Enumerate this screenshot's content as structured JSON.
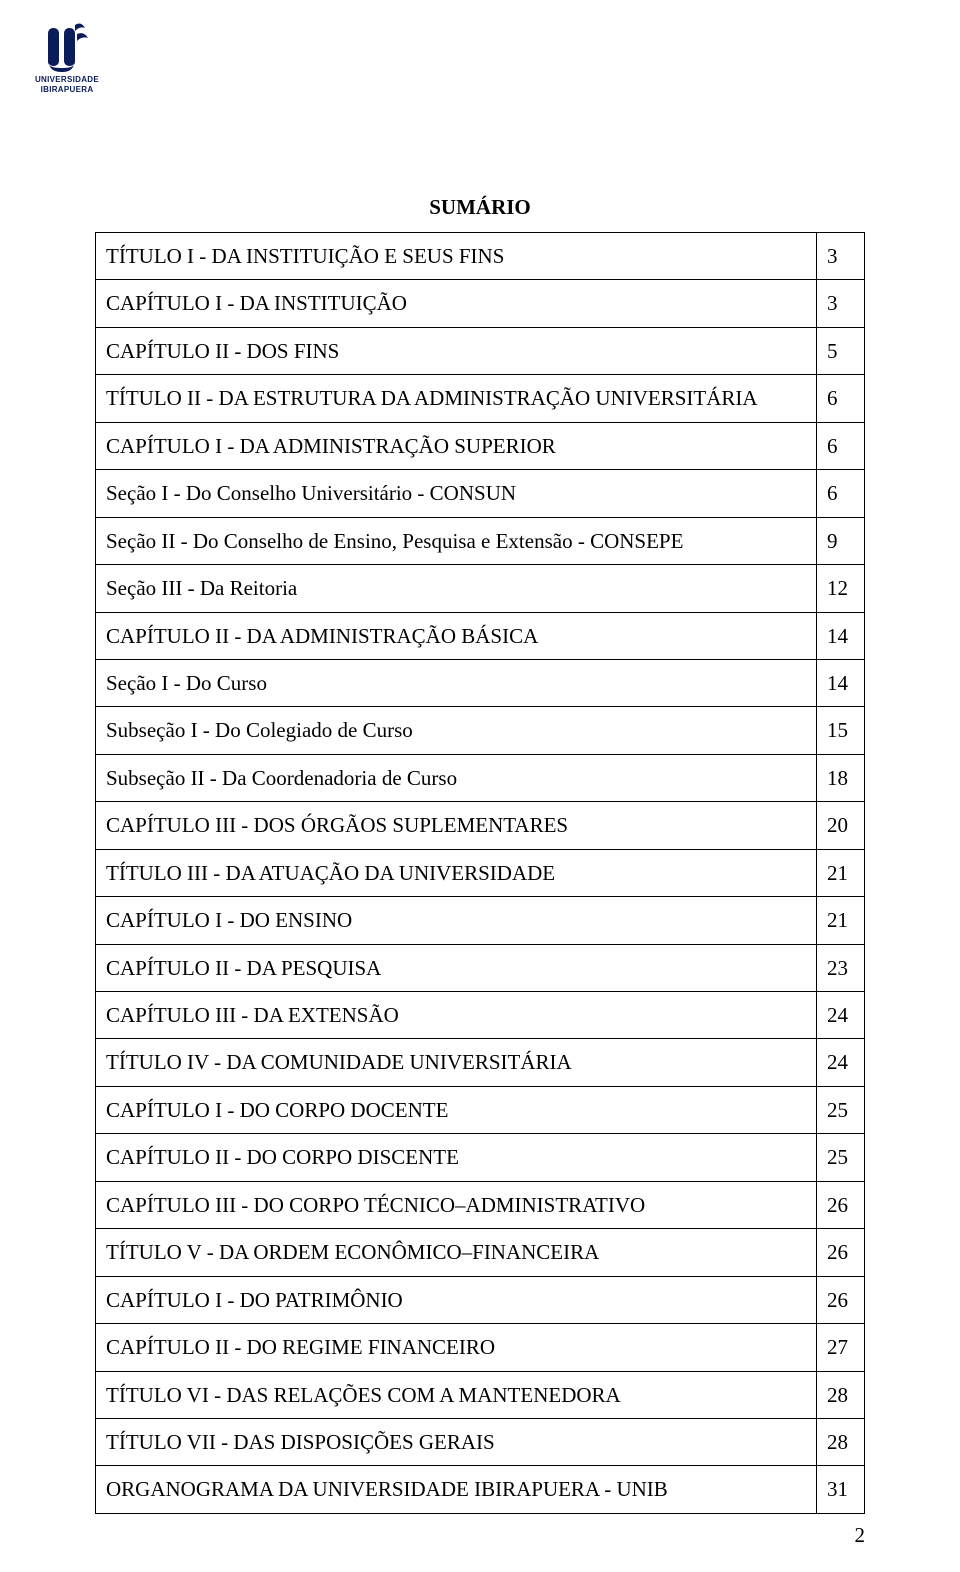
{
  "logo": {
    "line1": "UNIVERSIDADE",
    "line2": "IBIRAPUERA",
    "color": "#0a1c5a"
  },
  "title": "SUMÁRIO",
  "toc": [
    {
      "label": "TÍTULO I - DA INSTITUIÇÃO E SEUS FINS",
      "page": "3"
    },
    {
      "label": "CAPÍTULO I - DA INSTITUIÇÃO",
      "page": "3"
    },
    {
      "label": "CAPÍTULO II - DOS FINS",
      "page": "5"
    },
    {
      "label": "TÍTULO II - DA ESTRUTURA DA ADMINISTRAÇÃO UNIVERSITÁRIA",
      "page": "6"
    },
    {
      "label": "CAPÍTULO I - DA ADMINISTRAÇÃO SUPERIOR",
      "page": "6"
    },
    {
      "label": "Seção I - Do Conselho Universitário - CONSUN",
      "page": "6"
    },
    {
      "label": "Seção II - Do Conselho de Ensino, Pesquisa e Extensão - CONSEPE",
      "page": "9"
    },
    {
      "label": "Seção III - Da Reitoria",
      "page": "12"
    },
    {
      "label": "CAPÍTULO II - DA ADMINISTRAÇÃO BÁSICA",
      "page": "14"
    },
    {
      "label": "Seção I - Do Curso",
      "page": "14"
    },
    {
      "label": "Subseção I - Do Colegiado de Curso",
      "page": "15"
    },
    {
      "label": "Subseção II - Da Coordenadoria de Curso",
      "page": "18"
    },
    {
      "label": "CAPÍTULO III - DOS ÓRGÃOS SUPLEMENTARES",
      "page": "20"
    },
    {
      "label": "TÍTULO III - DA ATUAÇÃO DA UNIVERSIDADE",
      "page": "21"
    },
    {
      "label": "CAPÍTULO I - DO ENSINO",
      "page": "21"
    },
    {
      "label": "CAPÍTULO II - DA PESQUISA",
      "page": "23"
    },
    {
      "label": "CAPÍTULO III - DA EXTENSÃO",
      "page": "24"
    },
    {
      "label": "TÍTULO IV - DA COMUNIDADE UNIVERSITÁRIA",
      "page": "24"
    },
    {
      "label": "CAPÍTULO I - DO CORPO DOCENTE",
      "page": "25"
    },
    {
      "label": "CAPÍTULO II - DO CORPO DISCENTE",
      "page": "25"
    },
    {
      "label": "CAPÍTULO III - DO CORPO TÉCNICO–ADMINISTRATIVO",
      "page": "26"
    },
    {
      "label": "TÍTULO V - DA ORDEM ECONÔMICO–FINANCEIRA",
      "page": "26"
    },
    {
      "label": "CAPÍTULO I - DO PATRIMÔNIO",
      "page": "26"
    },
    {
      "label": "CAPÍTULO II - DO REGIME FINANCEIRO",
      "page": "27"
    },
    {
      "label": "TÍTULO VI - DAS RELAÇÕES COM A MANTENEDORA",
      "page": "28"
    },
    {
      "label": "TÍTULO VII - DAS DISPOSIÇÕES GERAIS",
      "page": "28"
    },
    {
      "label": "ORGANOGRAMA DA UNIVERSIDADE IBIRAPUERA - UNIB",
      "page": "31"
    }
  ],
  "page_number": "2"
}
